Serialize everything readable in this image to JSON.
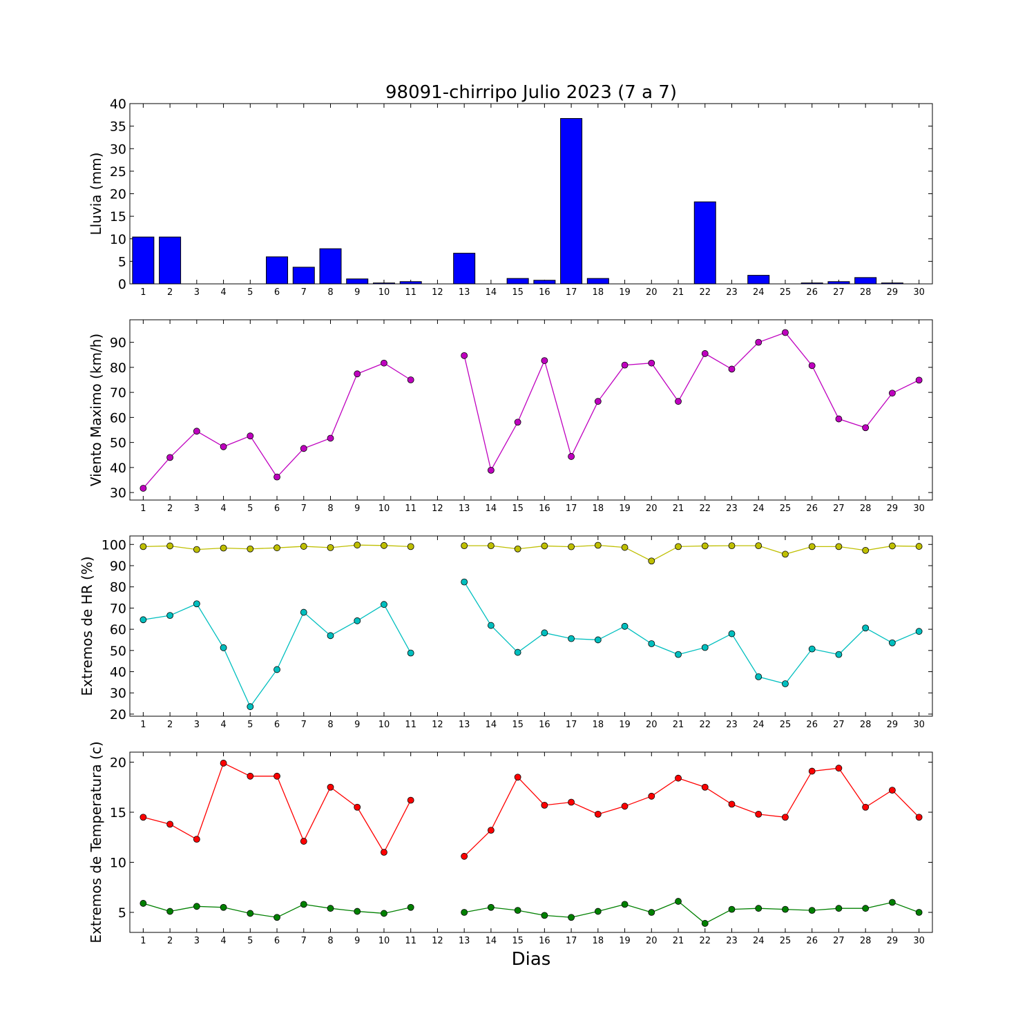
{
  "chart_data": {
    "title": "98091-chirripo Julio 2023  (7 a 7)",
    "xlabel": "Dias",
    "x": [
      1,
      2,
      3,
      4,
      5,
      6,
      7,
      8,
      9,
      10,
      11,
      12,
      13,
      14,
      15,
      16,
      17,
      18,
      19,
      20,
      21,
      22,
      23,
      24,
      25,
      26,
      27,
      28,
      29,
      30
    ],
    "panels": [
      {
        "type": "bar",
        "ylabel": "Lluvia (mm)",
        "ylim": [
          0,
          40
        ],
        "yticks": [
          0,
          5,
          10,
          15,
          20,
          25,
          30,
          35,
          40
        ],
        "series": [
          {
            "color": "#0000ff",
            "values": [
              10.4,
              10.4,
              0,
              0,
              0,
              6.0,
              3.7,
              7.8,
              1.1,
              0.2,
              0.5,
              0,
              6.8,
              0,
              1.2,
              0.8,
              36.7,
              1.2,
              0,
              0,
              0,
              18.2,
              0,
              1.9,
              0,
              0.2,
              0.5,
              1.4,
              0.2,
              0
            ]
          }
        ]
      },
      {
        "type": "line",
        "ylabel": "Viento Maximo (km/h)",
        "ylim": [
          27,
          99
        ],
        "yticks": [
          30,
          40,
          50,
          60,
          70,
          80,
          90
        ],
        "series": [
          {
            "color": "#bf00bf",
            "values": [
              31.7,
              44.0,
              54.5,
              48.3,
              52.6,
              36.2,
              47.6,
              51.7,
              77.4,
              81.7,
              75.0,
              null,
              84.7,
              38.9,
              58.1,
              82.7,
              44.4,
              66.4,
              80.9,
              81.7,
              66.4,
              85.5,
              79.3,
              90.0,
              93.9,
              80.7,
              59.4,
              55.9,
              69.7,
              74.9
            ]
          }
        ]
      },
      {
        "type": "line",
        "ylabel": "Extremos de HR (%)",
        "ylim": [
          19,
          104
        ],
        "yticks": [
          20,
          30,
          40,
          50,
          60,
          70,
          80,
          90,
          100
        ],
        "series": [
          {
            "color": "#bfbf00",
            "values": [
              99,
              99.3,
              97.6,
              98.3,
              97.9,
              98.4,
              99.1,
              98.5,
              99.7,
              99.5,
              99,
              null,
              99.4,
              99.4,
              97.9,
              99.3,
              98.9,
              99.6,
              98.6,
              92.2,
              99,
              99.3,
              99.4,
              99.4,
              95.4,
              99,
              99,
              97.2,
              99.3,
              99.1
            ]
          },
          {
            "color": "#00bfbf",
            "values": [
              64.5,
              66.5,
              72,
              51.3,
              23.5,
              41,
              68,
              57,
              64,
              71.7,
              48.8,
              null,
              82.3,
              61.8,
              49.1,
              58.3,
              55.6,
              55,
              61.4,
              53.2,
              48.1,
              51.4,
              57.9,
              37.6,
              34.3,
              50.7,
              48.1,
              60.6,
              53.6,
              59
            ]
          }
        ]
      },
      {
        "type": "line",
        "ylabel": "Extremos de Temperatura (c)",
        "ylim": [
          3,
          21
        ],
        "yticks": [
          5,
          10,
          15,
          20
        ],
        "series": [
          {
            "color": "#ff0000",
            "values": [
              14.5,
              13.8,
              12.3,
              19.9,
              18.6,
              18.6,
              12.1,
              17.5,
              15.5,
              11.0,
              16.2,
              null,
              10.6,
              13.2,
              18.5,
              15.7,
              16.0,
              14.8,
              15.6,
              16.6,
              18.4,
              17.5,
              15.8,
              14.8,
              14.5,
              19.1,
              19.4,
              15.5,
              17.2,
              14.5
            ]
          },
          {
            "color": "#008000",
            "values": [
              5.9,
              5.1,
              5.6,
              5.5,
              4.9,
              4.5,
              5.8,
              5.4,
              5.1,
              4.9,
              5.5,
              null,
              5.0,
              5.5,
              5.2,
              4.7,
              4.5,
              5.1,
              5.8,
              5.0,
              6.1,
              3.9,
              5.3,
              5.4,
              5.3,
              5.2,
              5.4,
              5.4,
              6.0,
              5.0
            ]
          }
        ]
      }
    ]
  }
}
